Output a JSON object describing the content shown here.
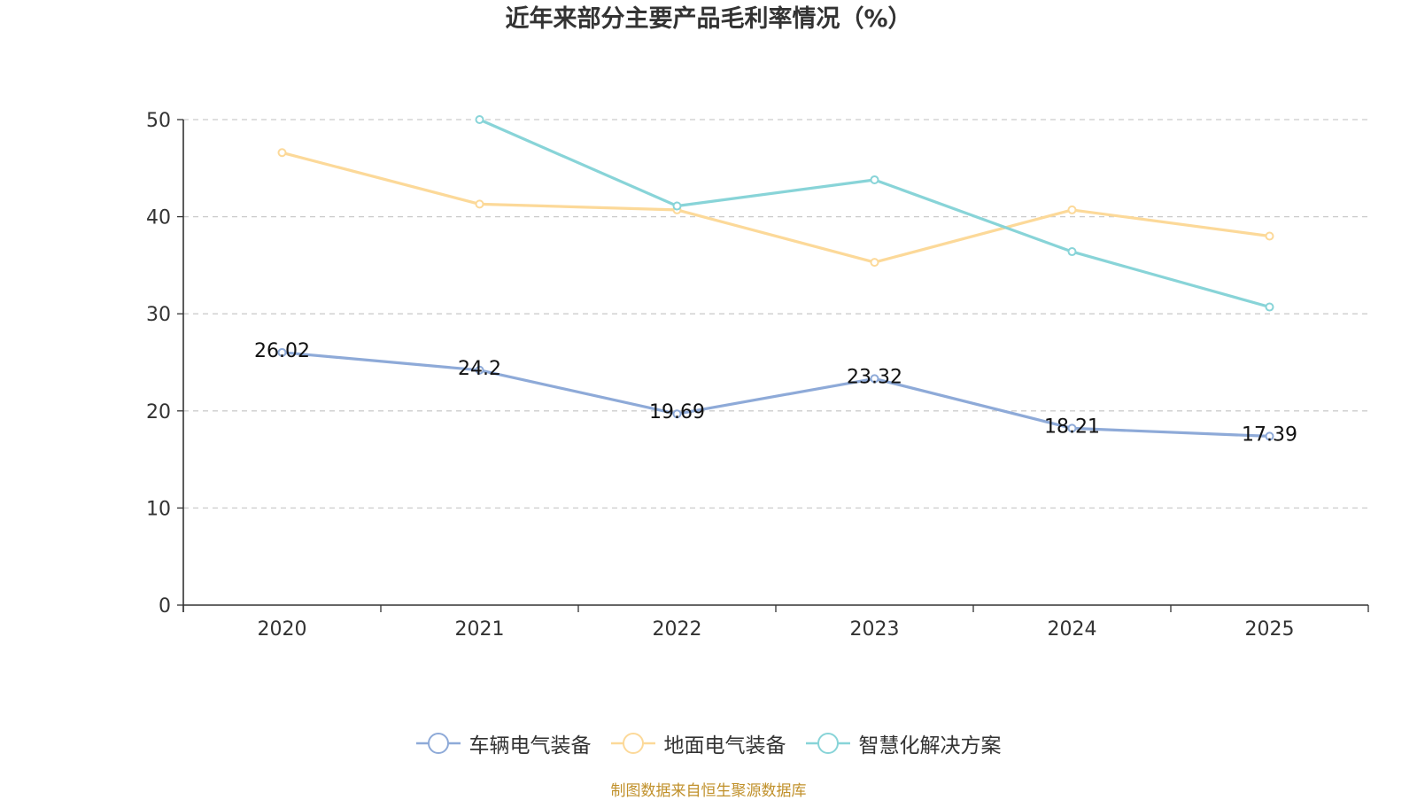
{
  "chart_data": {
    "type": "line",
    "title": "近年来部分主要产品毛利率情况（%）",
    "categories": [
      "2020",
      "2021",
      "2022",
      "2023",
      "2024",
      "2025"
    ],
    "ylim": [
      0,
      50
    ],
    "yticks": [
      0,
      10,
      20,
      30,
      40,
      50
    ],
    "grid": true,
    "legend_position": "bottom-center",
    "series": [
      {
        "name": "车辆电气装备",
        "color": "#8eaad8",
        "values": [
          26.02,
          24.2,
          19.69,
          23.32,
          18.21,
          17.39
        ],
        "labels": [
          "26.02",
          "24.2",
          "19.69",
          "23.32",
          "18.21",
          "17.39"
        ],
        "show_labels": true
      },
      {
        "name": "地面电气装备",
        "color": "#fcd999",
        "values": [
          46.6,
          41.3,
          40.7,
          35.3,
          40.7,
          38.0
        ],
        "show_labels": false
      },
      {
        "name": "智慧化解决方案",
        "color": "#88d4d8",
        "values": [
          null,
          50.0,
          41.1,
          43.8,
          36.4,
          30.7
        ],
        "show_labels": false
      }
    ]
  },
  "source_note": "制图数据来自恒生聚源数据库"
}
